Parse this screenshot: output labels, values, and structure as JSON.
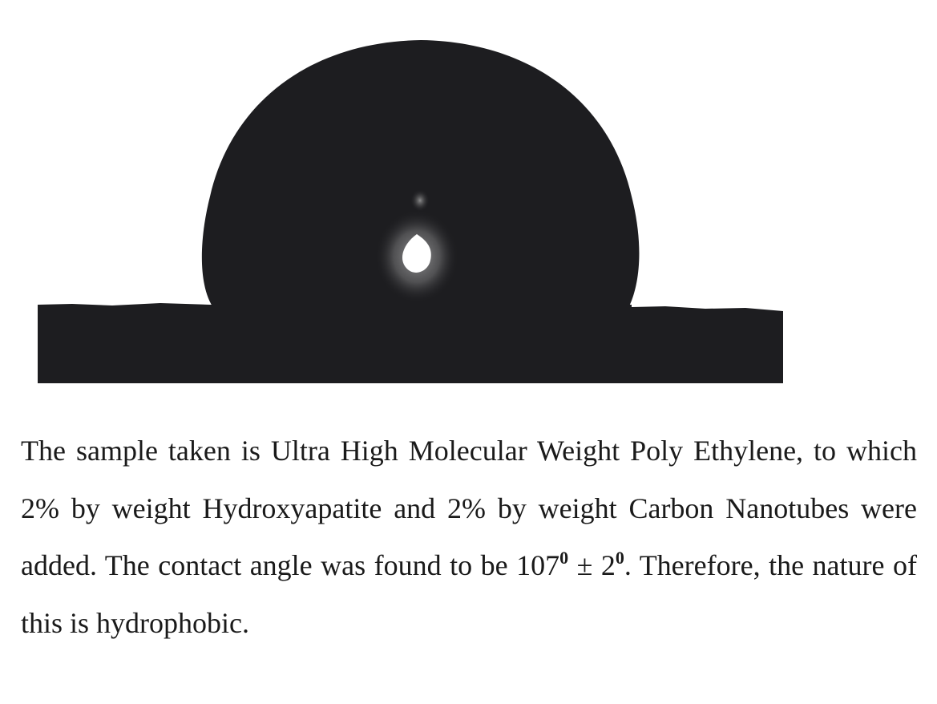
{
  "caption": {
    "part1": "The sample taken is Ultra High Molecular Weight Poly Ethylene, to which 2% by weight Hydroxyapatite and 2% by weight Carbon Nanotubes were added. The contact angle was found to be 107",
    "degree_symbol_1": "0",
    "part2": " ± 2",
    "degree_symbol_2": "0",
    "part3": ". Therefore, the nature of this is hydrophobic."
  },
  "colors": {
    "droplet": "#1d1d20",
    "substrate": "#1d1d20",
    "background": "#ffffff",
    "text": "#1a1a1a"
  }
}
